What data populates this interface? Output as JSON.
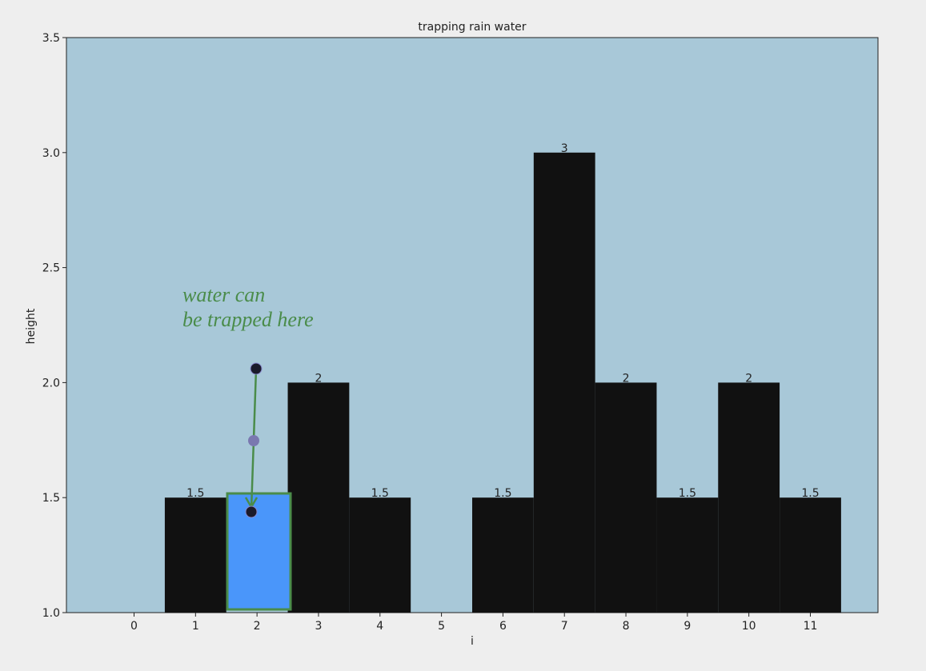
{
  "chart_data": {
    "type": "bar",
    "title": "trapping rain water",
    "x_label": "i",
    "y_label": "height",
    "x": [
      0,
      1,
      2,
      3,
      4,
      5,
      6,
      7,
      8,
      9,
      10,
      11
    ],
    "values": [
      null,
      1.5,
      null,
      2,
      1.5,
      null,
      1.5,
      3,
      2,
      1.5,
      2,
      1.5
    ],
    "color": "#111111",
    "xlim": [
      -1.1,
      12.1
    ],
    "xticks": [
      0,
      1,
      2,
      3,
      4,
      5,
      6,
      7,
      8,
      9,
      10,
      11
    ],
    "ylim": [
      1,
      3.5
    ],
    "yticks": [
      {
        "value": 1,
        "label": "1.0"
      },
      1.5,
      {
        "value": 2,
        "label": "2.0"
      },
      2.5,
      {
        "value": 3,
        "label": "3.0"
      },
      3.5
    ],
    "annotation": [
      "water can",
      "be trapped here"
    ]
  }
}
